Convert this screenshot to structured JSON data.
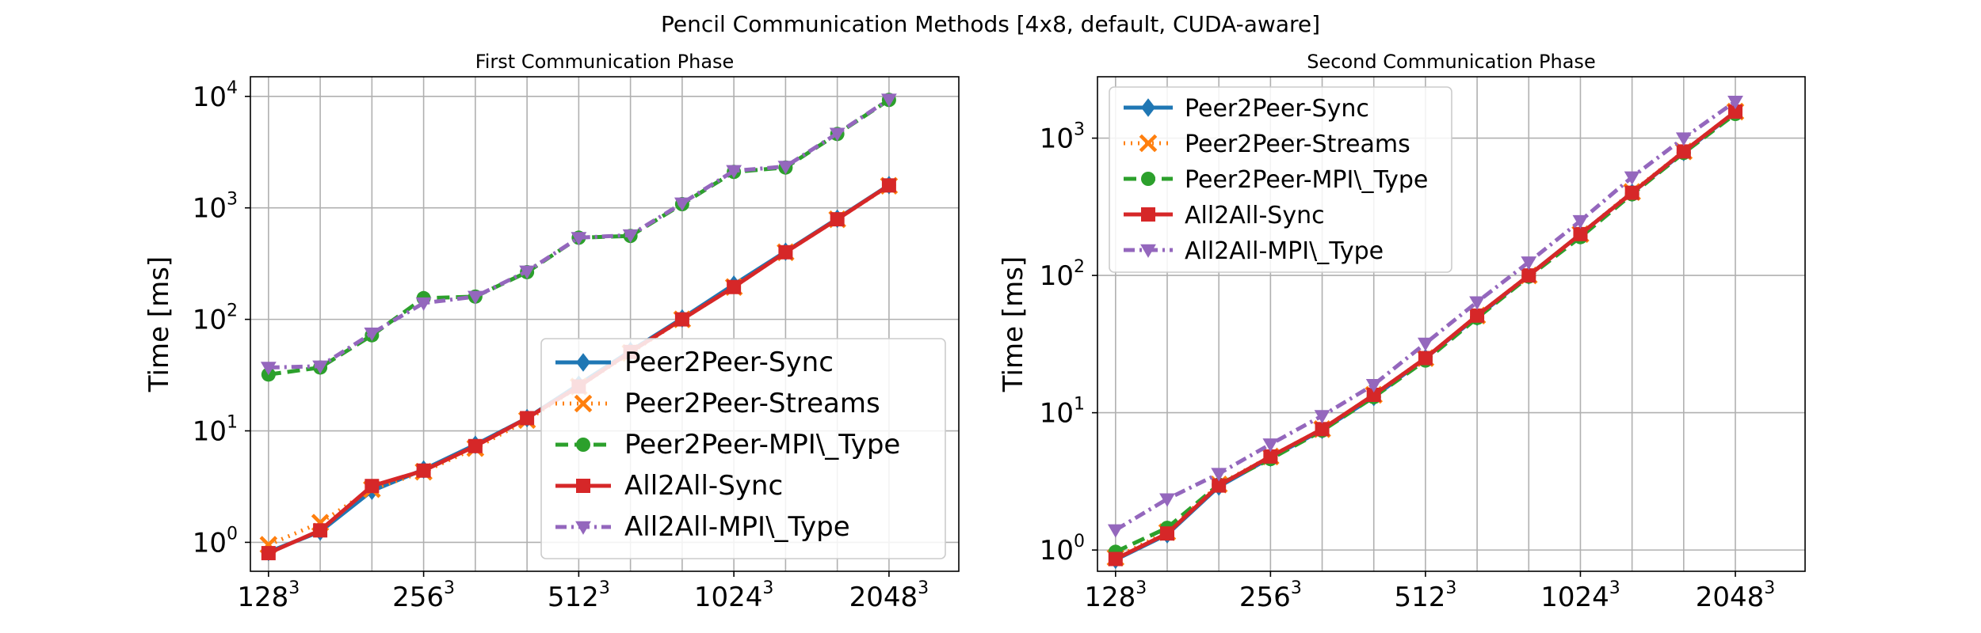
{
  "figure": {
    "title": "Pencil Communication Methods [4x8, default, CUDA-aware]"
  },
  "styles": {
    "Peer2Peer-Sync": {
      "color": "#1f77b4",
      "dash": "",
      "marker": "diamond"
    },
    "Peer2Peer-Streams": {
      "color": "#ff7f0e",
      "dash": "2 7",
      "marker": "x"
    },
    "Peer2Peer-MPI\\_Type": {
      "color": "#2ca02c",
      "dash": "16 8",
      "marker": "circle"
    },
    "All2All-Sync": {
      "color": "#d62728",
      "dash": "",
      "marker": "square"
    },
    "All2All-MPI\\_Type": {
      "color": "#9467bd",
      "dash": "14 6 3 6",
      "marker": "triangle-down"
    }
  },
  "chart_data": [
    {
      "type": "line",
      "title": "First Communication Phase",
      "xlabel": "",
      "ylabel": "Time [ms]",
      "yscale": "log",
      "ylim": [
        0.55,
        15000
      ],
      "xlim": [
        -0.35,
        13.35
      ],
      "x_tick_labels": [
        {
          "x": 0,
          "base": "128",
          "sup": "3"
        },
        {
          "x": 3,
          "base": "256",
          "sup": "3"
        },
        {
          "x": 6,
          "base": "512",
          "sup": "3"
        },
        {
          "x": 9,
          "base": "1024",
          "sup": "3"
        },
        {
          "x": 12,
          "base": "2048",
          "sup": "3"
        }
      ],
      "y_tick_labels": [
        {
          "y": 1,
          "base": "10",
          "sup": "0"
        },
        {
          "y": 10,
          "base": "10",
          "sup": "1"
        },
        {
          "y": 100,
          "base": "10",
          "sup": "2"
        },
        {
          "y": 1000,
          "base": "10",
          "sup": "3"
        },
        {
          "y": 10000,
          "base": "10",
          "sup": "4"
        }
      ],
      "x_gridlines": [
        0,
        1,
        2,
        3,
        4,
        5,
        6,
        7,
        8,
        9,
        10,
        11,
        12
      ],
      "grid": true,
      "legend_position": "lower-right",
      "x": [
        0,
        1,
        2,
        3,
        4,
        5,
        6,
        7,
        8,
        9,
        10,
        11,
        12
      ],
      "series": [
        {
          "name": "Peer2Peer-Sync",
          "values": [
            0.82,
            1.25,
            2.9,
            4.5,
            7.5,
            13,
            26,
            52,
            102,
            205,
            405,
            800,
            1600
          ]
        },
        {
          "name": "Peer2Peer-Streams",
          "values": [
            0.95,
            1.5,
            3.0,
            4.3,
            7.0,
            12.5,
            25,
            50,
            100,
            195,
            400,
            790,
            1580
          ]
        },
        {
          "name": "Peer2Peer-MPI\\_Type",
          "values": [
            32,
            37,
            72,
            155,
            160,
            265,
            540,
            560,
            1080,
            2100,
            2300,
            4600,
            9300
          ]
        },
        {
          "name": "All2All-Sync",
          "values": [
            0.8,
            1.28,
            3.2,
            4.4,
            7.3,
            13,
            25,
            51,
            100,
            195,
            400,
            790,
            1590
          ]
        },
        {
          "name": "All2All-MPI\\_Type",
          "values": [
            37,
            38,
            75,
            140,
            160,
            270,
            540,
            570,
            1100,
            2150,
            2350,
            4650,
            9400
          ]
        }
      ]
    },
    {
      "type": "line",
      "title": "Second Communication Phase",
      "xlabel": "",
      "ylabel": "Time [ms]",
      "yscale": "log",
      "ylim": [
        0.7,
        2800
      ],
      "xlim": [
        -0.35,
        13.35
      ],
      "x_tick_labels": [
        {
          "x": 0,
          "base": "128",
          "sup": "3"
        },
        {
          "x": 3,
          "base": "256",
          "sup": "3"
        },
        {
          "x": 6,
          "base": "512",
          "sup": "3"
        },
        {
          "x": 9,
          "base": "1024",
          "sup": "3"
        },
        {
          "x": 12,
          "base": "2048",
          "sup": "3"
        }
      ],
      "y_tick_labels": [
        {
          "y": 1,
          "base": "10",
          "sup": "0"
        },
        {
          "y": 10,
          "base": "10",
          "sup": "1"
        },
        {
          "y": 100,
          "base": "10",
          "sup": "2"
        },
        {
          "y": 1000,
          "base": "10",
          "sup": "3"
        }
      ],
      "x_gridlines": [
        0,
        1,
        2,
        3,
        4,
        5,
        6,
        7,
        8,
        9,
        10,
        11,
        12
      ],
      "grid": true,
      "legend_position": "upper-left",
      "x": [
        0,
        1,
        2,
        3,
        4,
        5,
        6,
        7,
        8,
        9,
        10,
        11,
        12
      ],
      "series": [
        {
          "name": "Peer2Peer-Sync",
          "values": [
            0.85,
            1.3,
            2.9,
            4.7,
            7.5,
            13,
            25,
            50,
            100,
            200,
            400,
            790,
            1550
          ]
        },
        {
          "name": "Peer2Peer-Streams",
          "values": [
            0.88,
            1.35,
            3.0,
            4.8,
            7.6,
            13.5,
            25,
            51,
            100,
            200,
            405,
            800,
            1560
          ]
        },
        {
          "name": "Peer2Peer-MPI\\_Type",
          "values": [
            0.97,
            1.45,
            3.0,
            4.6,
            7.4,
            13,
            24,
            49,
            98,
            190,
            390,
            780,
            1500
          ]
        },
        {
          "name": "All2All-Sync",
          "values": [
            0.86,
            1.32,
            2.95,
            4.8,
            7.6,
            13.5,
            25,
            51,
            100,
            200,
            400,
            800,
            1560
          ]
        },
        {
          "name": "All2All-MPI\\_Type",
          "values": [
            1.4,
            2.35,
            3.6,
            5.9,
            9.5,
            16,
            32,
            64,
            125,
            250,
            520,
            1000,
            1850
          ]
        }
      ]
    }
  ]
}
